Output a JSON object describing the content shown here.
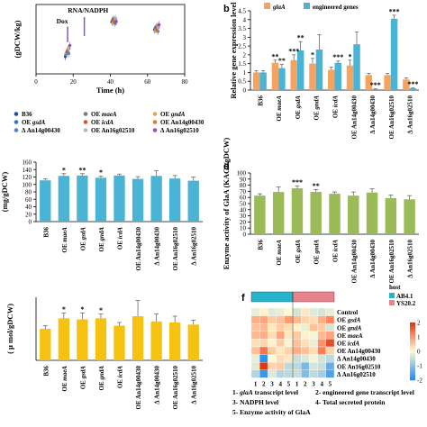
{
  "panels": {
    "b": "b",
    "d": "d",
    "f": "f"
  },
  "chart_data": [
    {
      "id": "a",
      "type": "scatter",
      "xlabel": "Time (h)",
      "ylabel": "(gDCW/kg)",
      "xticks": [
        0,
        20,
        40,
        60,
        80
      ],
      "xlim": [
        0,
        80
      ],
      "ylim": [
        0,
        22
      ],
      "annotations": [
        "Dox",
        "RNA/NADPH"
      ],
      "x": [
        17,
        42,
        65
      ],
      "series": [
        {
          "name": "B36",
          "values": [
            5.5,
            16.5,
            14
          ],
          "color": "#1f4e9c",
          "marker": "diamond"
        },
        {
          "name": "OE maeA",
          "values": [
            6.2,
            17.0,
            14.5
          ],
          "color": "#7a7a7a",
          "marker": "triangle"
        },
        {
          "name": "OE gndA",
          "values": [
            6.8,
            16.2,
            13.8
          ],
          "color": "#e8a33d",
          "marker": "x"
        },
        {
          "name": "OE gsdA",
          "values": [
            7.0,
            17.4,
            14.8
          ],
          "color": "#3a75b8",
          "marker": "triangle"
        },
        {
          "name": "OE icdA",
          "values": [
            7.4,
            16.8,
            14.2
          ],
          "color": "#d4542c",
          "marker": "x"
        },
        {
          "name": "OE An14g00430",
          "values": [
            7.8,
            17.2,
            15.0
          ],
          "color": "#e07a26",
          "marker": "square"
        },
        {
          "name": "Δ An14g00430",
          "values": [
            6.5,
            16.0,
            13.5
          ],
          "color": "#5b7ec4",
          "marker": "triangle"
        },
        {
          "name": "OE An16g02510",
          "values": [
            8.0,
            17.6,
            14.6
          ],
          "color": "#b8b8b8",
          "marker": "circle"
        },
        {
          "name": "Δ An16g02510",
          "values": [
            9.0,
            16.6,
            15.6
          ],
          "color": "#8b55b8",
          "marker": "diamond"
        }
      ]
    },
    {
      "id": "b",
      "type": "bar",
      "ylabel": "Relative gene expression level",
      "ylim": [
        0,
        4.5
      ],
      "yticks": [
        "0",
        "0.5",
        "1",
        "1.5",
        "2",
        "2.5",
        "3",
        "3.5",
        "4",
        "4.5"
      ],
      "categories": [
        "B36",
        "OE maeA",
        "OE gsdA",
        "OE gndA",
        "OE icdA",
        "OE An14g00430",
        "Δ An14g00430",
        "OE An16g02510",
        "Δ An16g02510"
      ],
      "series": [
        {
          "name": "glaA",
          "values": [
            1.0,
            1.55,
            1.7,
            1.5,
            1.15,
            1.4,
            0.85,
            0.85,
            0.6
          ],
          "color": "#f4a460",
          "errors": [
            0.1,
            0.15,
            0.3,
            0.3,
            0.15,
            0.3,
            0.1,
            0.1,
            0.1
          ]
        },
        {
          "name": "engineered genes",
          "values": [
            1.0,
            1.25,
            2.25,
            2.3,
            1.55,
            2.6,
            0.05,
            4.05,
            0.1
          ],
          "color": "#4bb3d4",
          "errors": [
            0.1,
            0.2,
            0.5,
            0.85,
            0.1,
            0.7,
            0.02,
            0.2,
            0.02
          ]
        }
      ],
      "stars": [
        {
          "i": 1,
          "s": 0,
          "t": "**"
        },
        {
          "i": 1,
          "s": 1,
          "t": "**"
        },
        {
          "i": 2,
          "s": 0,
          "t": "***"
        },
        {
          "i": 2,
          "s": 1,
          "t": "**"
        },
        {
          "i": 3,
          "s": 0,
          "t": "*"
        },
        {
          "i": 4,
          "s": 1,
          "t": "***"
        },
        {
          "i": 5,
          "s": 0,
          "t": "*"
        },
        {
          "i": 6,
          "s": 1,
          "t": "***"
        },
        {
          "i": 7,
          "s": 1,
          "t": "***"
        },
        {
          "i": 8,
          "s": 1,
          "t": "***"
        }
      ]
    },
    {
      "id": "c",
      "type": "bar",
      "ylabel": "(mg/gDCW)",
      "ylim": [
        0,
        160
      ],
      "yticks": [
        "0",
        "20",
        "40",
        "60",
        "80",
        "100",
        "120",
        "140",
        "160"
      ],
      "categories": [
        "B36",
        "OE maeA",
        "OE gsdA",
        "OE gndA",
        "OE icdA",
        "OE An14g00430",
        "Δ An14g00430",
        "OE An16g02510",
        "Δ An16g02510"
      ],
      "values": [
        111,
        123,
        124,
        118,
        124,
        115,
        123,
        116,
        110
      ],
      "errors": [
        4,
        6,
        5,
        4,
        4,
        6,
        14,
        8,
        10
      ],
      "color": "#4bb3d4",
      "stars": [
        {
          "i": 1,
          "t": "*"
        },
        {
          "i": 2,
          "t": "**"
        },
        {
          "i": 3,
          "t": "*"
        }
      ]
    },
    {
      "id": "d",
      "type": "bar",
      "ylabel": "Enzyme activity of GlaA (KAGI/gDCW)",
      "ylim": [
        0,
        100
      ],
      "yticks": [
        "0",
        "10",
        "20",
        "30",
        "40",
        "50",
        "60",
        "70",
        "80",
        "90",
        "100"
      ],
      "categories": [
        "B36",
        "OE maeA",
        "OE gsdA",
        "OE gndA",
        "OE icdA",
        "OE An14g00430",
        "Δ An14g00430",
        "OE An16g02510",
        "Δ An16g02510"
      ],
      "values": [
        63,
        69,
        75,
        69,
        66,
        63,
        68,
        59,
        57
      ],
      "errors": [
        3,
        8,
        4,
        4,
        3,
        6,
        6,
        5,
        6
      ],
      "color": "#9bbb59",
      "stars": [
        {
          "i": 2,
          "t": "***"
        },
        {
          "i": 3,
          "t": "**"
        }
      ]
    },
    {
      "id": "e",
      "type": "bar",
      "ylabel": "( μ mol/gDCW)",
      "categories": [
        "B36",
        "OE maeA",
        "OE gsdA",
        "OE gndA",
        "OE icdA",
        "OE An14g00430",
        "Δ An14g00430",
        "OE An16g02510",
        "Δ An16g02510"
      ],
      "values": [
        0.3,
        0.4,
        0.39,
        0.4,
        0.33,
        0.42,
        0.37,
        0.36,
        0.34
      ],
      "errors": [
        0.03,
        0.05,
        0.06,
        0.04,
        0.03,
        0.15,
        0.07,
        0.06,
        0.04
      ],
      "ylim": [
        0,
        0.6
      ],
      "color": "#f5c211",
      "stars": [
        {
          "i": 1,
          "t": "*"
        },
        {
          "i": 2,
          "t": "*"
        },
        {
          "i": 3,
          "t": "*"
        }
      ]
    },
    {
      "id": "f",
      "type": "heatmap",
      "rows": [
        "Control",
        "OE gsdA",
        "OE gndA",
        "OE maeA",
        "OE icdA",
        "OE An14g00430",
        "Δ An14g00430",
        "OE An16g02510",
        "Δ An16g02510"
      ],
      "columns": [
        "1",
        "2",
        "3",
        "4",
        "5",
        "1",
        "2",
        "3",
        "4",
        "5"
      ],
      "host_groups": [
        {
          "name": "AB4.1",
          "color": "#27b4c9"
        },
        {
          "name": "YS20.2",
          "color": "#e8838d"
        }
      ],
      "legend_title": "host",
      "colorbar_ticks": [
        "2",
        "1",
        "0",
        "-1",
        "-2"
      ],
      "values": [
        [
          -0.2,
          0.1,
          -0.3,
          -0.2,
          0.0,
          -0.4,
          0.2,
          -0.3,
          -0.4,
          -0.2
        ],
        [
          0.8,
          0.9,
          0.5,
          0.6,
          1.0,
          0.7,
          0.4,
          0.3,
          0.8,
          1.2
        ],
        [
          0.6,
          0.7,
          0.2,
          0.5,
          0.3,
          0.1,
          -0.2,
          0.6,
          0.5,
          -0.4
        ],
        [
          0.7,
          0.8,
          0.3,
          0.9,
          0.2,
          0.5,
          0.1,
          -0.1,
          0.7,
          0.9
        ],
        [
          0.3,
          0.4,
          0.1,
          0.5,
          -0.1,
          0.6,
          0.3,
          -0.2,
          1.1,
          1.8
        ],
        [
          0.6,
          1.4,
          0.5,
          0.2,
          0.4,
          0.8,
          0.6,
          0.3,
          1.3,
          0.4
        ],
        [
          -0.2,
          -1.9,
          0.0,
          0.3,
          0.2,
          -0.5,
          -0.3,
          -0.1,
          -0.4,
          -0.6
        ],
        [
          -0.3,
          2.3,
          0.4,
          0.5,
          -0.6,
          -0.6,
          -1.2,
          -0.4,
          -0.5,
          -1.4
        ],
        [
          -0.7,
          -1.8,
          -0.3,
          -0.7,
          -0.6,
          -0.5,
          -1.1,
          -0.6,
          -0.8,
          -1.6
        ]
      ],
      "footnotes": [
        "1- glaA transcript level",
        "2- engineered gene transcript level",
        "3- NADPH level",
        "4- Total secreted protein",
        "5- Enzyme activity of GlaA"
      ]
    }
  ]
}
